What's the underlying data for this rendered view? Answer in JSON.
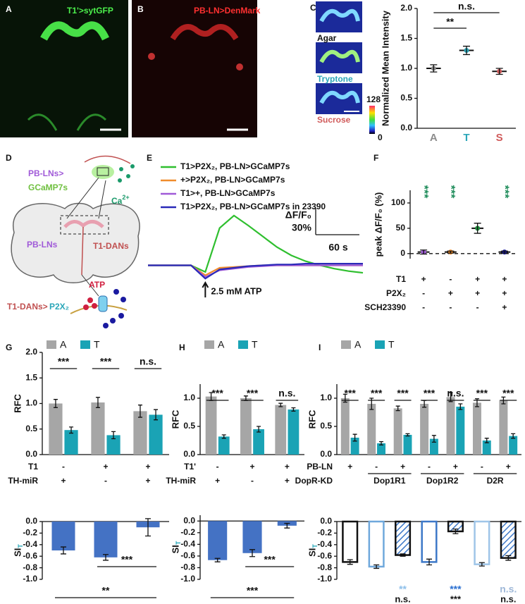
{
  "figure": {
    "A": {
      "letter": "A",
      "label": "T1'>sytGFP"
    },
    "B": {
      "letter": "B",
      "label": "PB-LN>DenMark"
    },
    "C": {
      "letter": "C",
      "images": [
        "Agar",
        "Tryptone",
        "Sucrose"
      ],
      "colorbar": [
        "128",
        "0"
      ]
    },
    "D": {
      "letter": "D",
      "texts": {
        "pbln_top": "PB-LNs>",
        "gcamp": "GCaMP7s",
        "ca": "Ca",
        "ca_sup": "2+",
        "pbln": "PB-LNs",
        "t1dan": "T1-DANs",
        "atp": "ATP",
        "t1dan2": "T1-DANs>",
        "p2x2": "P2X₂"
      }
    },
    "E": {
      "letter": "E"
    },
    "F": {
      "letter": "F"
    },
    "G": {
      "letter": "G"
    },
    "H": {
      "letter": "H"
    },
    "I": {
      "letter": "I"
    }
  },
  "chart_data": [
    {
      "type": "dot",
      "ylabel": "Normalized Mean Intensity",
      "categories": [
        "A",
        "T",
        "S"
      ],
      "category_colors": [
        "#8c8c8c",
        "#2aa6b8",
        "#d05a5a"
      ],
      "values": [
        1.0,
        1.3,
        0.95
      ],
      "errors": [
        0.06,
        0.07,
        0.05
      ],
      "ylim": [
        0,
        2.0
      ],
      "yticks": [
        {
          "value": 0,
          "label": "0.0"
        },
        0.5,
        {
          "value": 1,
          "label": "1.0"
        },
        1.5,
        {
          "value": 2,
          "label": "2.0"
        }
      ],
      "comparisons": [
        {
          "label": "**",
          "between": [
            "A",
            "T"
          ]
        },
        {
          "label": "n.s.",
          "between": [
            "A",
            "S"
          ]
        }
      ]
    },
    {
      "type": "line",
      "annotation": "2.5 mM ATP",
      "ylim": [
        -20,
        65
      ],
      "scalebar": {
        "y_label": "ΔF/F₀",
        "y_value": "30%",
        "x_value": "60 s"
      },
      "series": [
        {
          "name": "T1>P2X₂, PB-LN>GCaMP7s",
          "color": "#2fbf2f",
          "values": [
            0,
            0,
            0,
            0,
            -8,
            45,
            60,
            48,
            35,
            22,
            12,
            5,
            0,
            -4,
            -7,
            -9
          ]
        },
        {
          "name": "+>P2X₂, PB-LN>GCaMP7s",
          "color": "#f08c2c",
          "values": [
            0,
            0,
            0,
            0,
            -12,
            -3,
            -2,
            -1,
            0,
            0,
            0,
            0,
            0,
            0,
            0,
            0
          ]
        },
        {
          "name": "T1>+, PB-LN>GCaMP7s",
          "color": "#a05ad8",
          "values": [
            0,
            0,
            0,
            0,
            -14,
            -6,
            -4,
            -2,
            -1,
            0,
            0,
            0,
            0,
            0,
            0,
            0
          ]
        },
        {
          "name": "T1>P2X₂, PB-LN>GCaMP7s in 23390",
          "color": "#2a2ab8",
          "values": [
            0,
            0,
            0,
            0,
            -16,
            -5,
            -3,
            -1,
            0,
            1,
            1,
            2,
            2,
            2,
            2,
            2
          ]
        }
      ]
    },
    {
      "type": "dot",
      "ylabel": "peak ΔF/F₀ (%)",
      "values": [
        3,
        3,
        50,
        3
      ],
      "errors": [
        4,
        2,
        10,
        2
      ],
      "point_colors": [
        "#a05ad8",
        "#f08c2c",
        "#1e8c3c",
        "#1a1aa0"
      ],
      "ylim": [
        -10,
        125
      ],
      "yticks": [
        0,
        50,
        100
      ],
      "zero_line": "dashed",
      "sig": [
        "***",
        "***",
        null,
        "***"
      ],
      "sig_color": "#1e8c5a",
      "rows": [
        {
          "name": "T1",
          "values": [
            "+",
            "-",
            "+",
            "+"
          ]
        },
        {
          "name": "P2X₂",
          "values": [
            "-",
            "+",
            "+",
            "+"
          ]
        },
        {
          "name": "SCH23390",
          "values": [
            "-",
            "-",
            "-",
            "+"
          ]
        }
      ]
    },
    {
      "type": "bar",
      "ylabel": "RFC",
      "ylim": [
        0,
        2.0
      ],
      "yticks": [
        {
          "value": 0,
          "label": "0.0"
        },
        0.5,
        {
          "value": 1,
          "label": "1.0"
        },
        1.5,
        {
          "value": 2,
          "label": "2.0"
        }
      ],
      "series": [
        {
          "name": "A",
          "color": "#a6a6a6",
          "values": [
            1.0,
            1.02,
            0.85
          ],
          "errors": [
            0.08,
            0.1,
            0.12
          ]
        },
        {
          "name": "T",
          "color": "#1aa3b5",
          "values": [
            0.48,
            0.38,
            0.78
          ],
          "errors": [
            0.06,
            0.07,
            0.1
          ]
        }
      ],
      "sig": [
        "***",
        "***",
        "n.s."
      ],
      "rows": [
        {
          "name": "T1",
          "values": [
            "-",
            "+",
            "+"
          ]
        },
        {
          "name": "TH-miR",
          "values": [
            "+",
            "-",
            "+"
          ]
        }
      ]
    },
    {
      "type": "bar",
      "ylabel": "SI",
      "ylabel_sub": "T",
      "color": "#4472c4",
      "values": [
        -0.5,
        -0.62,
        -0.1
      ],
      "errors": [
        0.06,
        0.05,
        0.15
      ],
      "ylim": [
        -1.0,
        0.0
      ],
      "yticks": [
        {
          "value": 0,
          "label": "0.0"
        },
        -0.2,
        -0.4,
        -0.6,
        -0.8,
        {
          "value": -1,
          "label": "-1.0"
        }
      ],
      "comparisons": [
        {
          "label": "***",
          "between": [
            1,
            2
          ]
        },
        {
          "label": "**",
          "between": [
            0,
            2
          ]
        }
      ]
    },
    {
      "type": "bar",
      "ylabel": "RFC",
      "ylim": [
        0,
        1.25
      ],
      "yticks": [
        {
          "value": 0,
          "label": "0.0"
        },
        0.5,
        {
          "value": 1,
          "label": "1.0"
        }
      ],
      "series": [
        {
          "name": "A",
          "color": "#a6a6a6",
          "values": [
            1.03,
            1.0,
            0.88
          ],
          "errors": [
            0.07,
            0.04,
            0.03
          ]
        },
        {
          "name": "T",
          "color": "#1aa3b5",
          "values": [
            0.32,
            0.45,
            0.8
          ],
          "errors": [
            0.03,
            0.05,
            0.03
          ]
        }
      ],
      "sig": [
        "***",
        "***",
        "n.s."
      ],
      "rows": [
        {
          "name": "T1'",
          "values": [
            "-",
            "+",
            "+"
          ]
        },
        {
          "name": "TH-miR",
          "values": [
            "+",
            "-",
            "+"
          ]
        }
      ]
    },
    {
      "type": "bar",
      "ylabel": "SI",
      "ylabel_sub": "T",
      "color": "#4472c4",
      "values": [
        -0.67,
        -0.55,
        -0.08
      ],
      "errors": [
        0.03,
        0.06,
        0.04
      ],
      "ylim": [
        -1.0,
        0.1
      ],
      "yticks": [
        {
          "value": 0,
          "label": "0.0"
        },
        -0.2,
        -0.4,
        -0.6,
        -0.8,
        {
          "value": -1,
          "label": "-1.0"
        }
      ],
      "comparisons": [
        {
          "label": "***",
          "between": [
            1,
            2
          ]
        },
        {
          "label": "***",
          "between": [
            0,
            2
          ]
        }
      ]
    },
    {
      "type": "bar",
      "ylabel": "RFC",
      "ylim": [
        0,
        1.25
      ],
      "yticks": [
        {
          "value": 0,
          "label": "0.0"
        },
        0.5,
        {
          "value": 1,
          "label": "1.0"
        }
      ],
      "series": [
        {
          "name": "A",
          "color": "#a6a6a6",
          "values": [
            1.0,
            0.9,
            0.82,
            0.9,
            1.02,
            0.92,
            0.96
          ],
          "errors": [
            0.07,
            0.1,
            0.04,
            0.06,
            0.08,
            0.07,
            0.06
          ]
        },
        {
          "name": "T",
          "color": "#1aa3b5",
          "values": [
            0.3,
            0.2,
            0.35,
            0.28,
            0.85,
            0.25,
            0.33
          ],
          "errors": [
            0.06,
            0.03,
            0.02,
            0.06,
            0.05,
            0.04,
            0.04
          ]
        }
      ],
      "sig": [
        "***",
        "***",
        "***",
        "***",
        "n.s.",
        "***",
        "***"
      ],
      "rows": [
        {
          "name": "PB-LN",
          "values": [
            "+",
            "-",
            "+",
            "-",
            "+",
            "-",
            "+"
          ]
        },
        {
          "name": "DopR-KD"
        }
      ],
      "groups": [
        {
          "label": "Dop1R1",
          "span": [
            1,
            2
          ]
        },
        {
          "label": "Dop1R2",
          "span": [
            3,
            4
          ]
        },
        {
          "label": "D2R",
          "span": [
            5,
            6
          ]
        }
      ]
    },
    {
      "type": "bar",
      "ylabel": "SI",
      "ylabel_sub": "T",
      "values": [
        -0.7,
        -0.78,
        -0.58,
        -0.7,
        -0.17,
        -0.74,
        -0.63
      ],
      "errors": [
        0.04,
        0.03,
        0.02,
        0.05,
        0.04,
        0.03,
        0.04
      ],
      "outline": [
        "#111111",
        "#6fa8dc",
        "#111111",
        "#3d78c8",
        "#111111",
        "#9fc5e8",
        "#111111"
      ],
      "hatch": [
        false,
        false,
        true,
        false,
        true,
        false,
        true
      ],
      "ylim": [
        -1.0,
        0.0
      ],
      "yticks": [
        {
          "value": 0,
          "label": "0.0"
        },
        -0.2,
        -0.4,
        -0.6,
        -0.8,
        {
          "value": -1,
          "label": "-1.0"
        }
      ],
      "notes_top": [
        null,
        null,
        "**",
        null,
        "***",
        null,
        "n.s."
      ],
      "notes_top_colors": [
        null,
        null,
        "#8fc0ea",
        null,
        "#2a6fd0",
        null,
        "#9fb8d8"
      ],
      "notes_bottom": [
        null,
        null,
        "n.s.",
        null,
        "***",
        null,
        "n.s."
      ]
    }
  ]
}
